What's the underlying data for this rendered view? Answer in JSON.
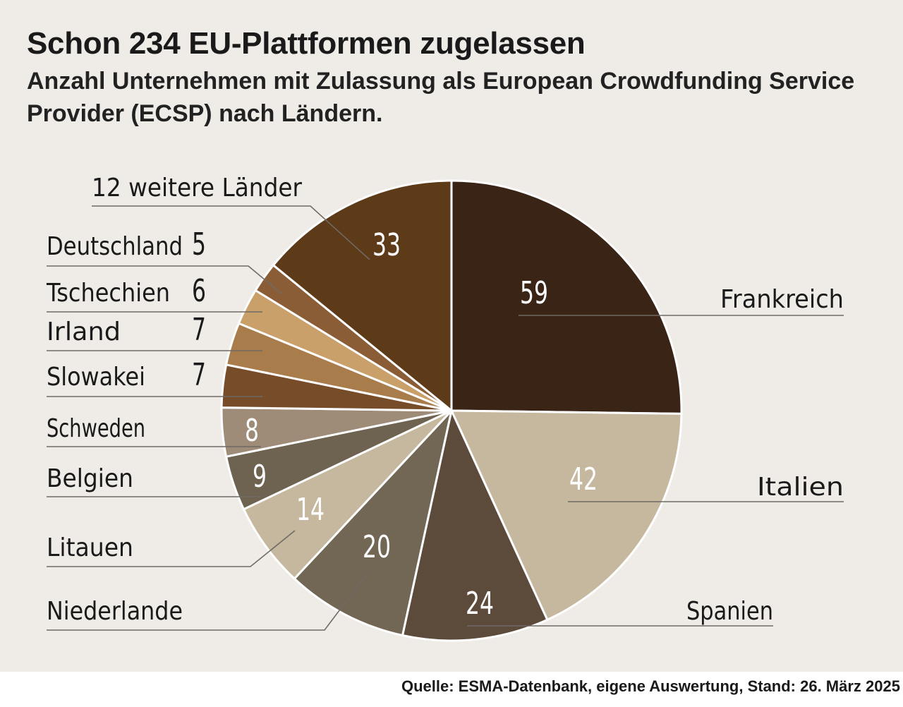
{
  "header": {
    "title": "Schon 234 EU-Plattformen zugelassen",
    "subtitle": "Anzahl Unternehmen mit Zulassung als European Crowdfunding Service Provider (ECSP) nach Ländern."
  },
  "chart_data": {
    "type": "pie",
    "title": "Schon 234 EU-Plattformen zugelassen",
    "subtitle": "Anzahl Unternehmen mit Zulassung als European Crowdfunding Service Provider (ECSP) nach Ländern.",
    "slices": [
      {
        "label": "Frankreich",
        "value": 59,
        "color": "#3a2416"
      },
      {
        "label": "Italien",
        "value": 42,
        "color": "#c6b89e"
      },
      {
        "label": "Spanien",
        "value": 24,
        "color": "#5c4a3b"
      },
      {
        "label": "Niederlande",
        "value": 20,
        "color": "#726654"
      },
      {
        "label": "Litauen",
        "value": 14,
        "color": "#c6b89e"
      },
      {
        "label": "Belgien",
        "value": 9,
        "color": "#6e6250"
      },
      {
        "label": "Schweden",
        "value": 8,
        "color": "#9e8b78"
      },
      {
        "label": "Slowakei",
        "value": 7,
        "color": "#774c29"
      },
      {
        "label": "Irland",
        "value": 7,
        "color": "#a97c4c"
      },
      {
        "label": "Tschechien",
        "value": 6,
        "color": "#c9a06a"
      },
      {
        "label": "Deutschland",
        "value": 5,
        "color": "#8a5d36"
      },
      {
        "label": "12 weitere Länder",
        "value": 33,
        "color": "#5d3a18"
      }
    ],
    "total": 234
  },
  "footer": {
    "source": "Quelle: ESMA-Datenbank, eigene Auswertung, Stand: 26. März 2025"
  }
}
